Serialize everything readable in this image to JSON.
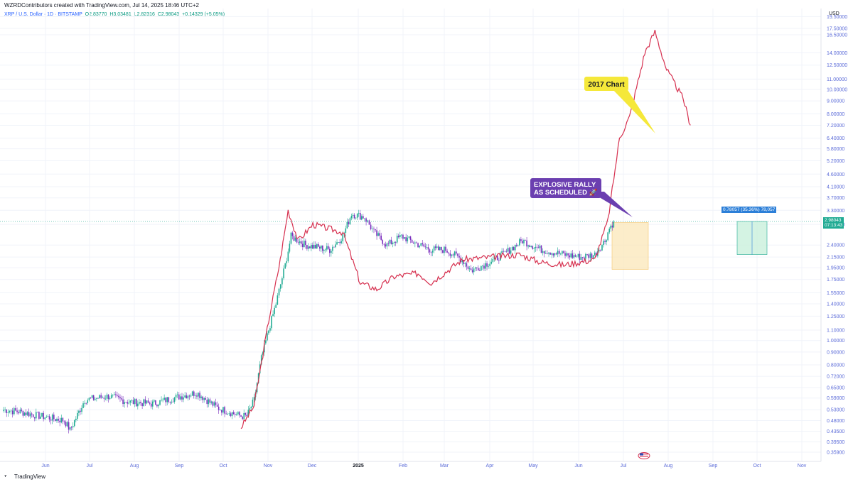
{
  "header": {
    "credit": "WZRDContributors created with TradingView.com, Jul 14, 2025 18:46 UTC+2",
    "symbol": "XRP / U.S. Dollar · 1D · BITSTAMP",
    "ohlc": {
      "open": "O2.83770",
      "high": "H3.03481",
      "low": "L2.82316",
      "close": "C2.98043",
      "change": "+0.14329 (+5.05%)"
    },
    "unit": "USD"
  },
  "footer": {
    "brand": "TradingView"
  },
  "colors": {
    "up": "#22ab94",
    "down": "#7b2fbe",
    "overlay": "#d6304f",
    "axis_text": "#5a6ad8",
    "callout_yellow": "#f5e83a",
    "callout_purple": "#6b3fb0",
    "price_badge": "#22ab94",
    "measure_badge": "#2c7fd8"
  },
  "chart_data": {
    "type": "line",
    "title": "",
    "scale": "log",
    "ylim": [
      0.33,
      21
    ],
    "y_ticks": [
      "19.50000",
      "17.50000",
      "16.50000",
      "14.00000",
      "12.50000",
      "11.00000",
      "10.00000",
      "9.00000",
      "8.00000",
      "7.20000",
      "6.40000",
      "5.80000",
      "5.20000",
      "4.60000",
      "4.10000",
      "3.70000",
      "3.30000",
      "2.90000",
      "2.40000",
      "2.15000",
      "1.95000",
      "1.75000",
      "1.55000",
      "1.40000",
      "1.25000",
      "1.10000",
      "1.00000",
      "0.90000",
      "0.80000",
      "0.72000",
      "0.65000",
      "0.59000",
      "0.53000",
      "0.48000",
      "0.43500",
      "0.39500",
      "0.35900"
    ],
    "x_ticks": [
      "Jun",
      "Jul",
      "Aug",
      "Sep",
      "Oct",
      "Nov",
      "Dec",
      "2025",
      "Feb",
      "Mar",
      "Apr",
      "May",
      "Jun",
      "Jul",
      "Aug",
      "Sep",
      "Oct",
      "Nov"
    ],
    "series": [
      {
        "kind": "candlestick",
        "x": [
          "May 20",
          "Jun 1",
          "Jun 15",
          "Jul 1",
          "Jul 5",
          "Jul 15",
          "Aug 1",
          "Aug 15",
          "Sep 1",
          "Sep 15",
          "Oct 1",
          "Oct 15",
          "Nov 1",
          "Nov 5",
          "Nov 10",
          "Nov 15",
          "Nov 20",
          "Nov 25",
          "Dec 1",
          "Dec 5",
          "Dec 15",
          "Jan 1",
          "Jan 10",
          "Jan 16",
          "Jan 25",
          "Feb 1",
          "Feb 10",
          "Feb 20",
          "Mar 2",
          "Mar 10",
          "Mar 20",
          "Apr 1",
          "Apr 7",
          "Apr 20",
          "May 1",
          "May 12",
          "May 25",
          "Jun 10",
          "Jun 22",
          "Jul 1",
          "Jul 8",
          "Jul 11",
          "Jul 14"
        ],
        "values": [
          0.53,
          0.52,
          0.5,
          0.48,
          0.44,
          0.58,
          0.6,
          0.57,
          0.56,
          0.59,
          0.62,
          0.54,
          0.5,
          0.5,
          0.58,
          0.85,
          1.1,
          1.4,
          2.0,
          2.6,
          2.4,
          2.3,
          2.6,
          3.2,
          3.1,
          2.7,
          2.4,
          2.6,
          2.4,
          2.3,
          2.3,
          2.1,
          1.9,
          2.05,
          2.25,
          2.5,
          2.3,
          2.2,
          2.15,
          2.2,
          2.5,
          2.8,
          2.98
        ]
      },
      {
        "kind": "line",
        "x": [
          "Nov 1",
          "Nov 10",
          "Nov 20",
          "Nov 28",
          "Dec 3",
          "Dec 10",
          "Dec 20",
          "Jan 10",
          "Jan 22",
          "Feb 3",
          "Feb 15",
          "Mar 1",
          "Mar 10",
          "Apr 1",
          "May 10",
          "May 25",
          "Jun 10",
          "Jul 1",
          "Jul 10",
          "Jul 18",
          "Jul 25",
          "Aug 5",
          "Aug 12",
          "Aug 20",
          "Sep 1",
          "Sep 6"
        ],
        "values": [
          0.45,
          0.55,
          1.2,
          2.1,
          3.3,
          2.5,
          2.9,
          2.7,
          1.7,
          1.6,
          1.8,
          1.85,
          1.7,
          2.1,
          2.2,
          2.05,
          2.0,
          2.1,
          3.0,
          6.4,
          7.8,
          14.0,
          17.0,
          12.0,
          9.2,
          7.2
        ]
      }
    ],
    "annotations": [
      {
        "text": "2017 Chart",
        "points_to": "Jul 28"
      },
      {
        "text": "EXPLOSIVE RALLY AS SCHEDULED 🚀",
        "points_to": "Jul 14"
      }
    ],
    "price_badge": {
      "value": "2.98043",
      "countdown": "07:13:43"
    },
    "measure_label": "0.78057 (35.36%) 78,057"
  }
}
